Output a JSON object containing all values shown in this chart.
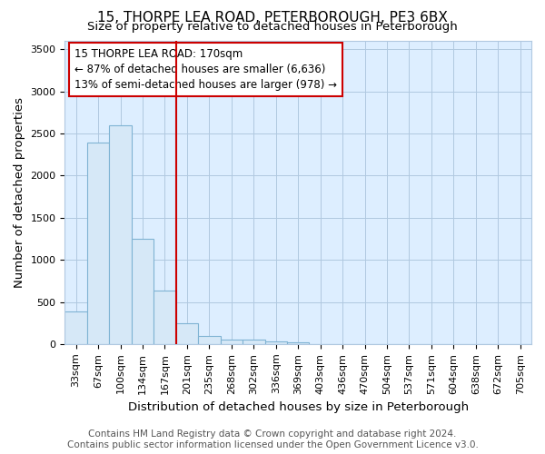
{
  "title": "15, THORPE LEA ROAD, PETERBOROUGH, PE3 6BX",
  "subtitle": "Size of property relative to detached houses in Peterborough",
  "xlabel": "Distribution of detached houses by size in Peterborough",
  "ylabel": "Number of detached properties",
  "footer_line1": "Contains HM Land Registry data © Crown copyright and database right 2024.",
  "footer_line2": "Contains public sector information licensed under the Open Government Licence v3.0.",
  "categories": [
    "33sqm",
    "67sqm",
    "100sqm",
    "134sqm",
    "167sqm",
    "201sqm",
    "235sqm",
    "268sqm",
    "302sqm",
    "336sqm",
    "369sqm",
    "403sqm",
    "436sqm",
    "470sqm",
    "504sqm",
    "537sqm",
    "571sqm",
    "604sqm",
    "638sqm",
    "672sqm",
    "705sqm"
  ],
  "values": [
    390,
    2390,
    2600,
    1250,
    640,
    250,
    100,
    55,
    50,
    35,
    25,
    0,
    0,
    0,
    0,
    0,
    0,
    0,
    0,
    0,
    0
  ],
  "bar_color": "#d6e8f7",
  "bar_edge_color": "#7fb3d3",
  "vline_color": "#cc0000",
  "vline_index": 4,
  "annotation_text": "15 THORPE LEA ROAD: 170sqm\n← 87% of detached houses are smaller (6,636)\n13% of semi-detached houses are larger (978) →",
  "ylim": [
    0,
    3600
  ],
  "yticks": [
    0,
    500,
    1000,
    1500,
    2000,
    2500,
    3000,
    3500
  ],
  "bg_color": "#ffffff",
  "plot_bg_color": "#ddeeff",
  "grid_color": "#b0c8e0",
  "title_fontsize": 11,
  "subtitle_fontsize": 9.5,
  "axis_label_fontsize": 9.5,
  "tick_fontsize": 8,
  "annotation_fontsize": 8.5,
  "footer_fontsize": 7.5
}
